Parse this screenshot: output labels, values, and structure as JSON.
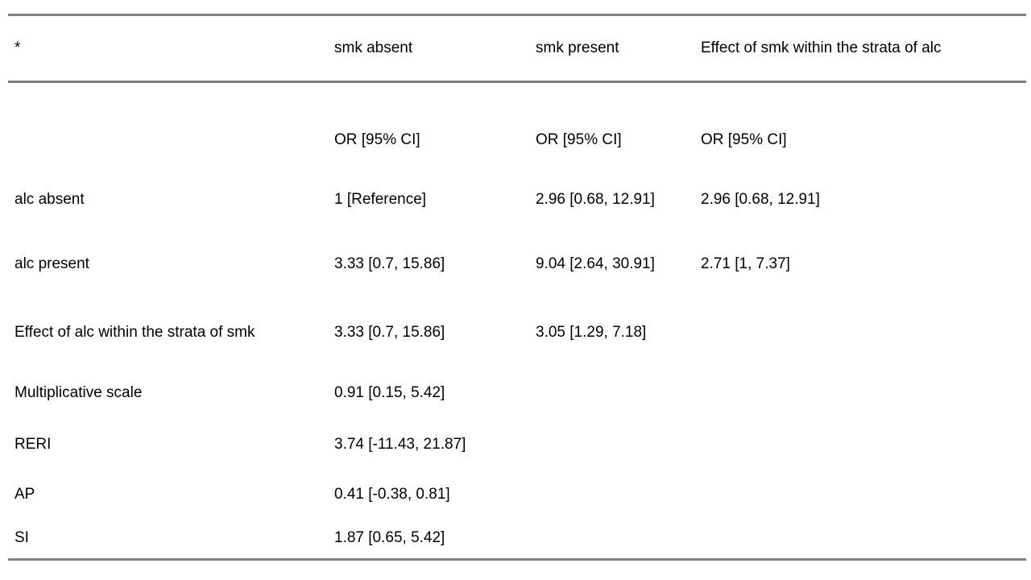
{
  "colors": {
    "background": "#ffffff",
    "text": "#000000",
    "rule": "#808080"
  },
  "table": {
    "header": [
      "*",
      "smk absent",
      "smk present",
      "Effect of smk within the strata of alc"
    ],
    "rows": [
      [
        "",
        "OR [95% CI]",
        "OR [95% CI]",
        "OR [95% CI]"
      ],
      [
        "alc absent",
        "1 [Reference]",
        "2.96 [0.68, 12.91]",
        "2.96 [0.68, 12.91]"
      ],
      [
        "alc present",
        "3.33 [0.7, 15.86]",
        "9.04 [2.64, 30.91]",
        "2.71 [1, 7.37]"
      ],
      [
        "Effect of alc within the strata of smk",
        "3.33 [0.7, 15.86]",
        "3.05 [1.29, 7.18]",
        ""
      ],
      [
        "Multiplicative scale",
        "0.91 [0.15, 5.42]",
        "",
        ""
      ],
      [
        "RERI",
        "3.74 [-11.43, 21.87]",
        "",
        ""
      ],
      [
        "AP",
        "0.41 [-0.38, 0.81]",
        "",
        ""
      ],
      [
        "SI",
        "1.87 [0.65, 5.42]",
        "",
        ""
      ]
    ]
  }
}
